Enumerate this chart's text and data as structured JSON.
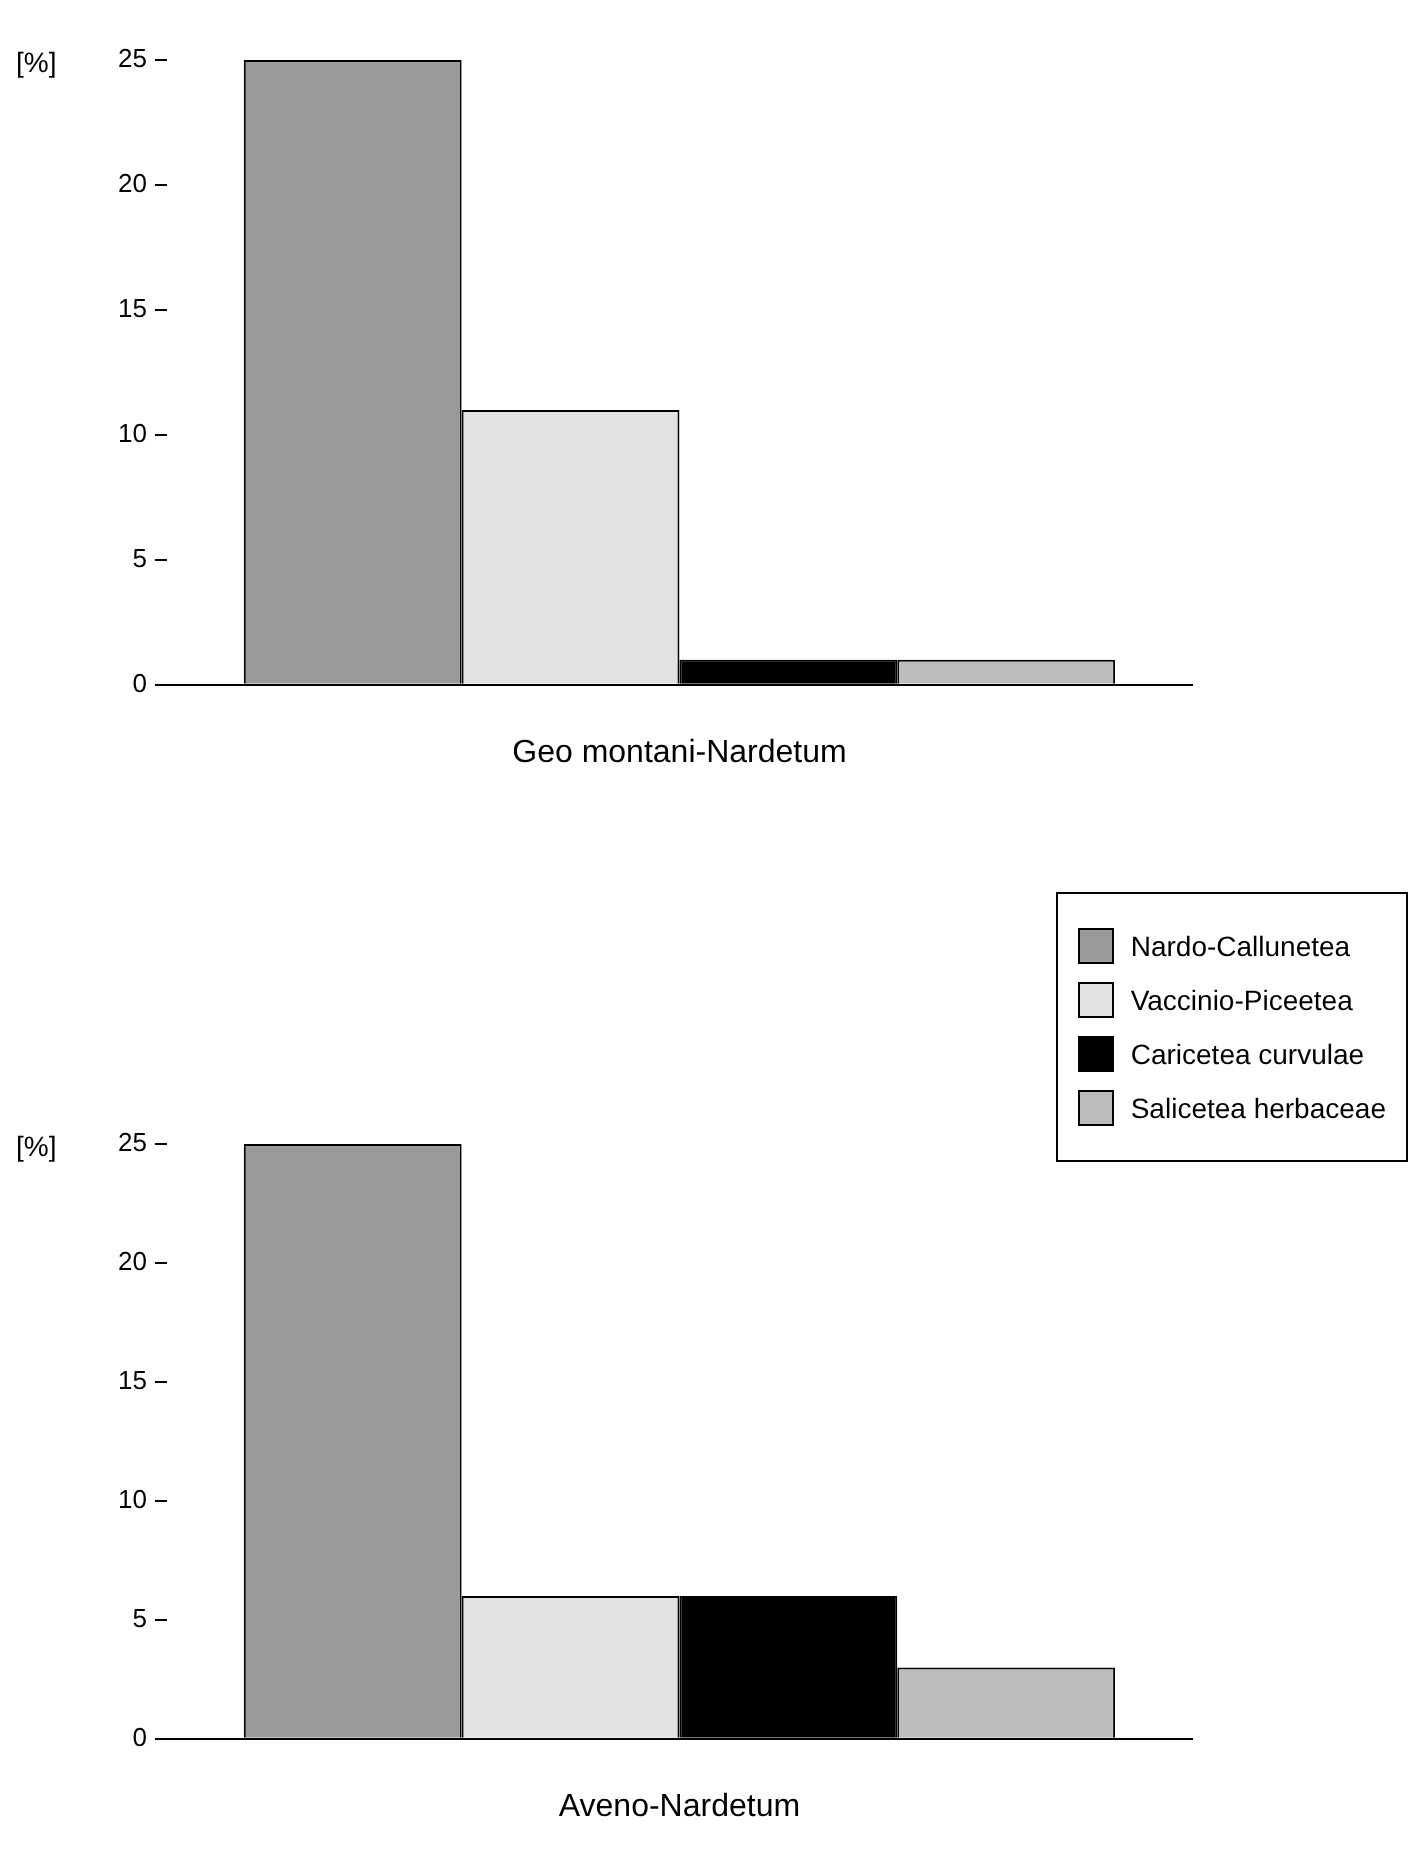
{
  "chart_data": [
    {
      "type": "bar",
      "xlabel": "Geo montani-Nardetum",
      "ylabel": "[%]",
      "categories": [
        null
      ],
      "ylim": [
        0,
        25
      ],
      "yticks": [
        0,
        5,
        10,
        15,
        20,
        25
      ],
      "series": [
        {
          "color": "#9a9a9a",
          "values": [
            25
          ]
        },
        {
          "color": "#e2e2e2",
          "values": [
            11
          ]
        },
        {
          "color": "#000000",
          "values": [
            1
          ]
        },
        {
          "color": "#bdbdbd",
          "values": [
            1
          ]
        }
      ]
    },
    {
      "type": "bar",
      "xlabel": "Aveno-Nardetum",
      "ylabel": "[%]",
      "categories": [
        null
      ],
      "ylim": [
        0,
        25
      ],
      "yticks": [
        0,
        5,
        10,
        15,
        20,
        25
      ],
      "legend": "top right",
      "series": [
        {
          "name": "Nardo-Callunetea",
          "color": "#9a9a9a",
          "values": [
            25
          ]
        },
        {
          "name": "Vaccinio-Piceetea",
          "color": "#e2e2e2",
          "values": [
            6
          ]
        },
        {
          "name": "Caricetea curvulae",
          "color": "#000000",
          "values": [
            6
          ]
        },
        {
          "name": "Salicetea herbaceae",
          "color": "#bdbdbd",
          "values": [
            3
          ]
        }
      ]
    }
  ]
}
